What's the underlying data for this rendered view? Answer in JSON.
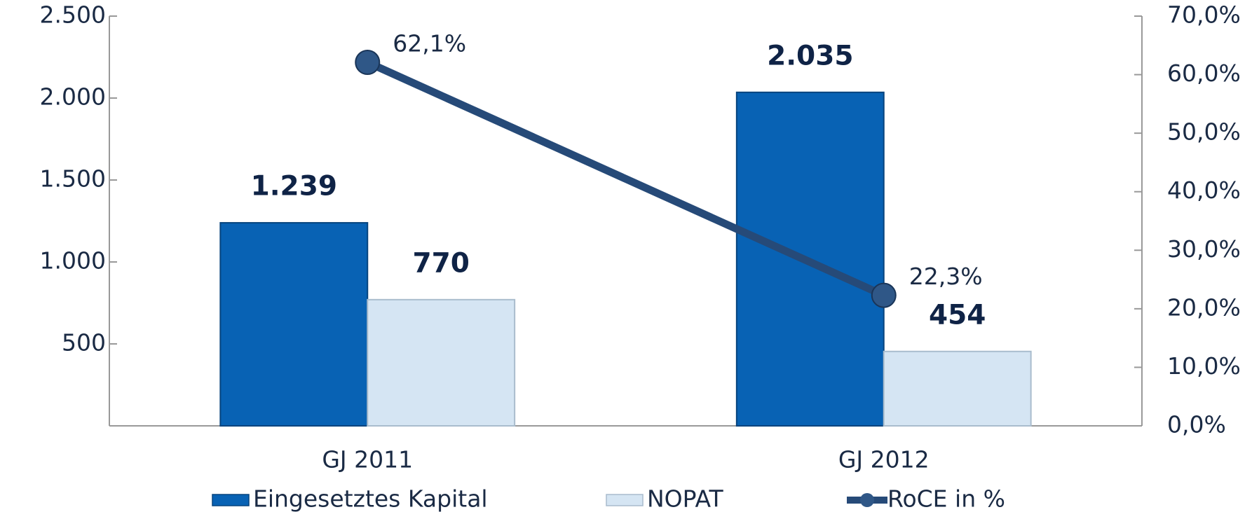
{
  "chart_data": {
    "type": "bar",
    "categories": [
      "GJ 2011",
      "GJ 2012"
    ],
    "series": [
      {
        "name": "Eingesetztes Kapital",
        "color": "#0862b4",
        "values": [
          1239,
          2035
        ],
        "value_labels": [
          "1.239",
          "2.035"
        ]
      },
      {
        "name": "NOPAT",
        "color": "#d5e5f3",
        "values": [
          770,
          454
        ]
      },
      {
        "name": "RoCE in %",
        "type": "line",
        "axis": "y2",
        "color": "#264a78",
        "values": [
          62.1,
          22.3
        ],
        "value_labels": [
          "62,1%",
          "22,3%"
        ]
      }
    ],
    "ylim": [
      0,
      2500
    ],
    "yticks": [
      {
        "value": 500,
        "label": "500"
      },
      {
        "value": 1000,
        "label": "1.000"
      },
      {
        "value": 1500,
        "label": "1.500"
      },
      {
        "value": 2000,
        "label": "2.000"
      },
      {
        "value": 2500,
        "label": "2.500"
      }
    ],
    "y2lim": [
      0,
      70
    ],
    "y2ticks": [
      {
        "value": 0,
        "label": "0,0%"
      },
      {
        "value": 10,
        "label": "10,0%"
      },
      {
        "value": 20,
        "label": "20,0%"
      },
      {
        "value": 30,
        "label": "30,0%"
      },
      {
        "value": 40,
        "label": "40,0%"
      },
      {
        "value": 50,
        "label": "50,0%"
      },
      {
        "value": 60,
        "label": "60,0%"
      },
      {
        "value": 70,
        "label": "70,0%"
      }
    ],
    "legend": "bottom"
  }
}
